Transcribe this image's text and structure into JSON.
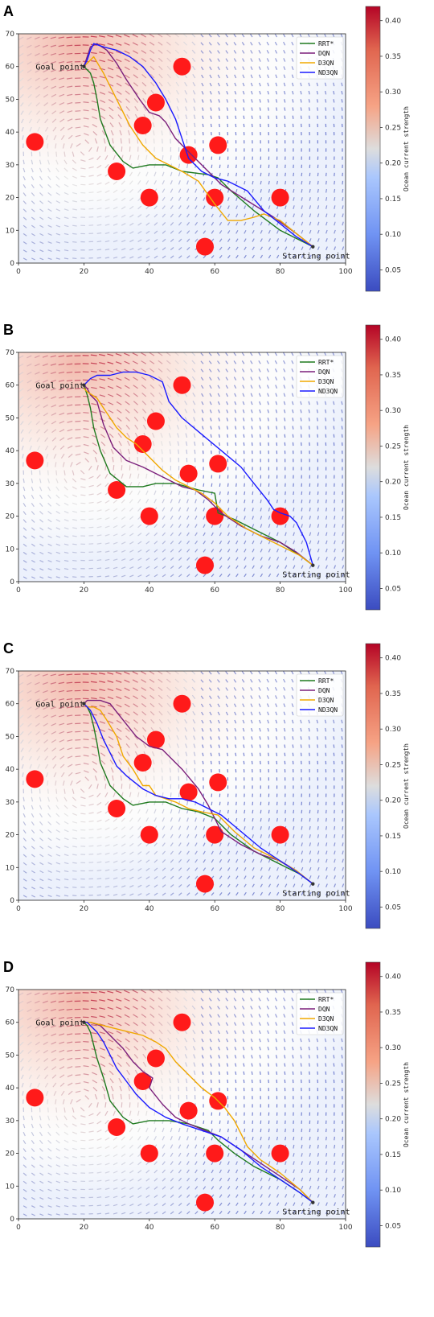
{
  "colors": {
    "obstacle": "#ff1a1a",
    "RRT*": "#1f7a1f",
    "DQN": "#7b1f7b",
    "D3QN": "#f0a800",
    "ND3QN": "#1a1aff",
    "cmap_low": "#3b4cc0",
    "cmap_mid": "#dddddd",
    "cmap_high": "#b40426"
  },
  "colorbar": {
    "label": "Ocean current strength",
    "min": 0.02,
    "max": 0.42,
    "ticks": [
      "0.05",
      "0.10",
      "0.15",
      "0.20",
      "0.25",
      "0.30",
      "0.35",
      "0.40"
    ]
  },
  "chart_data": [
    {
      "panel": "A",
      "type": "line",
      "xlim": [
        0,
        100
      ],
      "ylim": [
        0,
        70
      ],
      "xticks": [
        "0",
        "20",
        "40",
        "60",
        "80",
        "100"
      ],
      "yticks": [
        "0",
        "10",
        "20",
        "30",
        "40",
        "50",
        "60",
        "70"
      ],
      "legend": "top-right",
      "annotations": [
        {
          "text": "Goal point",
          "x": 20,
          "y": 60
        },
        {
          "text": "Starting point",
          "x": 90,
          "y": 5
        }
      ],
      "obstacles": [
        [
          5,
          37
        ],
        [
          30,
          28
        ],
        [
          38,
          42
        ],
        [
          42,
          49
        ],
        [
          40,
          20
        ],
        [
          50,
          60
        ],
        [
          52,
          33
        ],
        [
          61,
          36
        ],
        [
          60,
          20
        ],
        [
          80,
          20
        ],
        [
          57,
          5
        ]
      ],
      "series": [
        {
          "name": "RRT*",
          "x": [
            90,
            86,
            80,
            72,
            65,
            61,
            58,
            50,
            45,
            40,
            35,
            32,
            28,
            25,
            24,
            23,
            22,
            21,
            20
          ],
          "y": [
            5,
            7,
            10,
            16,
            22,
            26,
            27,
            28,
            30,
            30,
            29,
            31,
            36,
            44,
            50,
            55,
            58,
            59,
            60
          ]
        },
        {
          "name": "DQN",
          "x": [
            90,
            85,
            78,
            70,
            62,
            56,
            52,
            48,
            45,
            43,
            40,
            37,
            33,
            30,
            27,
            24,
            22,
            21,
            20
          ],
          "y": [
            5,
            9,
            14,
            19,
            24,
            30,
            34,
            38,
            43,
            45,
            46,
            50,
            56,
            61,
            65,
            67,
            66,
            63,
            60
          ]
        },
        {
          "name": "D3QN",
          "x": [
            90,
            85,
            80,
            75,
            72,
            68,
            64,
            60,
            55,
            50,
            46,
            42,
            38,
            34,
            30,
            26,
            23,
            21,
            20
          ],
          "y": [
            5,
            9,
            13,
            15,
            14,
            13,
            13,
            18,
            25,
            28,
            30,
            32,
            36,
            42,
            50,
            58,
            63,
            61,
            60
          ]
        },
        {
          "name": "ND3QN",
          "x": [
            90,
            85,
            80,
            75,
            70,
            64,
            60,
            56,
            52,
            50,
            48,
            45,
            42,
            38,
            34,
            30,
            26,
            23,
            22,
            21,
            20
          ],
          "y": [
            5,
            8,
            12,
            16,
            22,
            25,
            26,
            28,
            32,
            38,
            44,
            50,
            55,
            60,
            63,
            65,
            66,
            67,
            65,
            62,
            60
          ]
        }
      ]
    },
    {
      "panel": "B",
      "type": "line",
      "xlim": [
        0,
        100
      ],
      "ylim": [
        0,
        70
      ],
      "xticks": [
        "0",
        "20",
        "40",
        "60",
        "80",
        "100"
      ],
      "yticks": [
        "0",
        "10",
        "20",
        "30",
        "40",
        "50",
        "60",
        "70"
      ],
      "legend": "top-right",
      "annotations": [
        {
          "text": "Goal point",
          "x": 20,
          "y": 60
        },
        {
          "text": "Starting point",
          "x": 90,
          "y": 5
        }
      ],
      "obstacles": [
        [
          5,
          37
        ],
        [
          30,
          28
        ],
        [
          38,
          42
        ],
        [
          42,
          49
        ],
        [
          40,
          20
        ],
        [
          50,
          60
        ],
        [
          52,
          33
        ],
        [
          61,
          36
        ],
        [
          60,
          20
        ],
        [
          80,
          20
        ],
        [
          57,
          5
        ]
      ],
      "series": [
        {
          "name": "RRT*",
          "x": [
            90,
            86,
            80,
            72,
            66,
            61,
            60,
            55,
            48,
            42,
            38,
            33,
            28,
            25,
            23,
            22,
            21,
            20
          ],
          "y": [
            5,
            8,
            12,
            16,
            19,
            21,
            27,
            28,
            30,
            30,
            29,
            29,
            33,
            40,
            47,
            53,
            57,
            60
          ]
        },
        {
          "name": "DQN",
          "x": [
            90,
            85,
            80,
            74,
            68,
            62,
            58,
            54,
            50,
            46,
            42,
            38,
            33,
            29,
            26,
            24,
            22,
            21,
            20
          ],
          "y": [
            5,
            9,
            12,
            14,
            17,
            21,
            25,
            28,
            29,
            31,
            33,
            35,
            37,
            41,
            48,
            55,
            57,
            59,
            60
          ]
        },
        {
          "name": "D3QN",
          "x": [
            90,
            86,
            82,
            76,
            70,
            64,
            60,
            56,
            52,
            48,
            44,
            40,
            36,
            33,
            30,
            28,
            26,
            24,
            21,
            20
          ],
          "y": [
            5,
            8,
            10,
            13,
            16,
            20,
            24,
            27,
            29,
            31,
            34,
            38,
            42,
            44,
            47,
            50,
            53,
            56,
            58,
            59
          ]
        },
        {
          "name": "ND3QN",
          "x": [
            90,
            88,
            85,
            83,
            80,
            78,
            76,
            72,
            68,
            62,
            56,
            50,
            46,
            44,
            40,
            36,
            32,
            28,
            24,
            22,
            21,
            20
          ],
          "y": [
            5,
            12,
            18,
            20,
            21,
            22,
            25,
            30,
            35,
            40,
            45,
            50,
            55,
            61,
            63,
            64,
            64,
            63,
            63,
            62,
            61,
            60
          ]
        }
      ]
    },
    {
      "panel": "C",
      "type": "line",
      "xlim": [
        0,
        100
      ],
      "ylim": [
        0,
        70
      ],
      "xticks": [
        "0",
        "20",
        "40",
        "60",
        "80",
        "100"
      ],
      "yticks": [
        "0",
        "10",
        "20",
        "30",
        "40",
        "50",
        "60",
        "70"
      ],
      "legend": "top-right",
      "annotations": [
        {
          "text": "Goal point",
          "x": 20,
          "y": 60
        },
        {
          "text": "Starting point",
          "x": 90,
          "y": 5
        }
      ],
      "obstacles": [
        [
          5,
          37
        ],
        [
          30,
          28
        ],
        [
          38,
          42
        ],
        [
          42,
          49
        ],
        [
          40,
          20
        ],
        [
          50,
          60
        ],
        [
          52,
          33
        ],
        [
          61,
          36
        ],
        [
          60,
          20
        ],
        [
          80,
          20
        ],
        [
          57,
          5
        ]
      ],
      "series": [
        {
          "name": "RRT*",
          "x": [
            90,
            86,
            80,
            72,
            65,
            60,
            55,
            50,
            45,
            40,
            35,
            32,
            28,
            25,
            24,
            23,
            22,
            21,
            20
          ],
          "y": [
            5,
            8,
            11,
            15,
            20,
            25,
            27,
            28,
            30,
            30,
            29,
            31,
            35,
            42,
            48,
            53,
            57,
            59,
            60
          ]
        },
        {
          "name": "DQN",
          "x": [
            90,
            85,
            80,
            74,
            68,
            62,
            60,
            58,
            55,
            50,
            46,
            44,
            40,
            36,
            32,
            28,
            25,
            23,
            21,
            20
          ],
          "y": [
            5,
            9,
            12,
            14,
            17,
            21,
            25,
            29,
            34,
            40,
            44,
            46,
            47,
            50,
            55,
            60,
            61,
            61,
            61,
            60
          ]
        },
        {
          "name": "D3QN",
          "x": [
            90,
            85,
            78,
            72,
            66,
            61,
            56,
            52,
            48,
            42,
            40,
            38,
            35,
            32,
            30,
            27,
            25,
            23,
            21,
            20
          ],
          "y": [
            5,
            9,
            13,
            16,
            21,
            26,
            27,
            28,
            30,
            32,
            35,
            35,
            40,
            44,
            50,
            55,
            58,
            59,
            59,
            60
          ]
        },
        {
          "name": "ND3QN",
          "x": [
            90,
            86,
            80,
            74,
            68,
            62,
            58,
            54,
            50,
            46,
            42,
            38,
            33,
            30,
            28,
            26,
            24,
            22,
            21,
            20
          ],
          "y": [
            5,
            8,
            12,
            16,
            21,
            26,
            28,
            30,
            31,
            31,
            32,
            34,
            38,
            41,
            45,
            49,
            54,
            58,
            59,
            60
          ]
        }
      ]
    },
    {
      "panel": "D",
      "type": "line",
      "xlim": [
        0,
        100
      ],
      "ylim": [
        0,
        70
      ],
      "xticks": [
        "0",
        "20",
        "40",
        "60",
        "80",
        "100"
      ],
      "yticks": [
        "0",
        "10",
        "20",
        "30",
        "40",
        "50",
        "60",
        "70"
      ],
      "legend": "top-right",
      "annotations": [
        {
          "text": "Goal point",
          "x": 20,
          "y": 60
        },
        {
          "text": "Starting point",
          "x": 90,
          "y": 5
        }
      ],
      "obstacles": [
        [
          5,
          37
        ],
        [
          30,
          28
        ],
        [
          38,
          42
        ],
        [
          42,
          49
        ],
        [
          40,
          20
        ],
        [
          50,
          60
        ],
        [
          52,
          33
        ],
        [
          61,
          36
        ],
        [
          60,
          20
        ],
        [
          80,
          20
        ],
        [
          57,
          5
        ]
      ],
      "series": [
        {
          "name": "RRT*",
          "x": [
            90,
            86,
            80,
            72,
            66,
            61,
            58,
            52,
            46,
            40,
            35,
            32,
            28,
            26,
            24,
            23,
            22,
            21,
            20
          ],
          "y": [
            5,
            8,
            12,
            16,
            20,
            24,
            27,
            29,
            30,
            30,
            29,
            31,
            36,
            43,
            49,
            53,
            57,
            59,
            60
          ]
        },
        {
          "name": "DQN",
          "x": [
            90,
            86,
            80,
            74,
            68,
            62,
            57,
            52,
            48,
            44,
            40,
            41,
            38,
            35,
            32,
            28,
            25,
            22,
            20
          ],
          "y": [
            5,
            9,
            13,
            17,
            21,
            25,
            27,
            29,
            31,
            35,
            40,
            43,
            45,
            48,
            52,
            56,
            59,
            60,
            60
          ]
        },
        {
          "name": "D3QN",
          "x": [
            90,
            86,
            80,
            74,
            70,
            68,
            66,
            63,
            60,
            56,
            52,
            48,
            45,
            42,
            38,
            34,
            30,
            26,
            22,
            20
          ],
          "y": [
            5,
            9,
            14,
            18,
            22,
            26,
            30,
            34,
            37,
            40,
            44,
            48,
            52,
            54,
            56,
            57,
            58,
            59,
            60,
            60
          ]
        },
        {
          "name": "ND3QN",
          "x": [
            90,
            86,
            80,
            74,
            68,
            62,
            56,
            50,
            45,
            40,
            36,
            33,
            30,
            28,
            26,
            24,
            22,
            21,
            20
          ],
          "y": [
            5,
            8,
            12,
            16,
            21,
            25,
            27,
            29,
            31,
            34,
            38,
            42,
            46,
            50,
            54,
            57,
            59,
            60,
            60
          ]
        }
      ]
    }
  ]
}
